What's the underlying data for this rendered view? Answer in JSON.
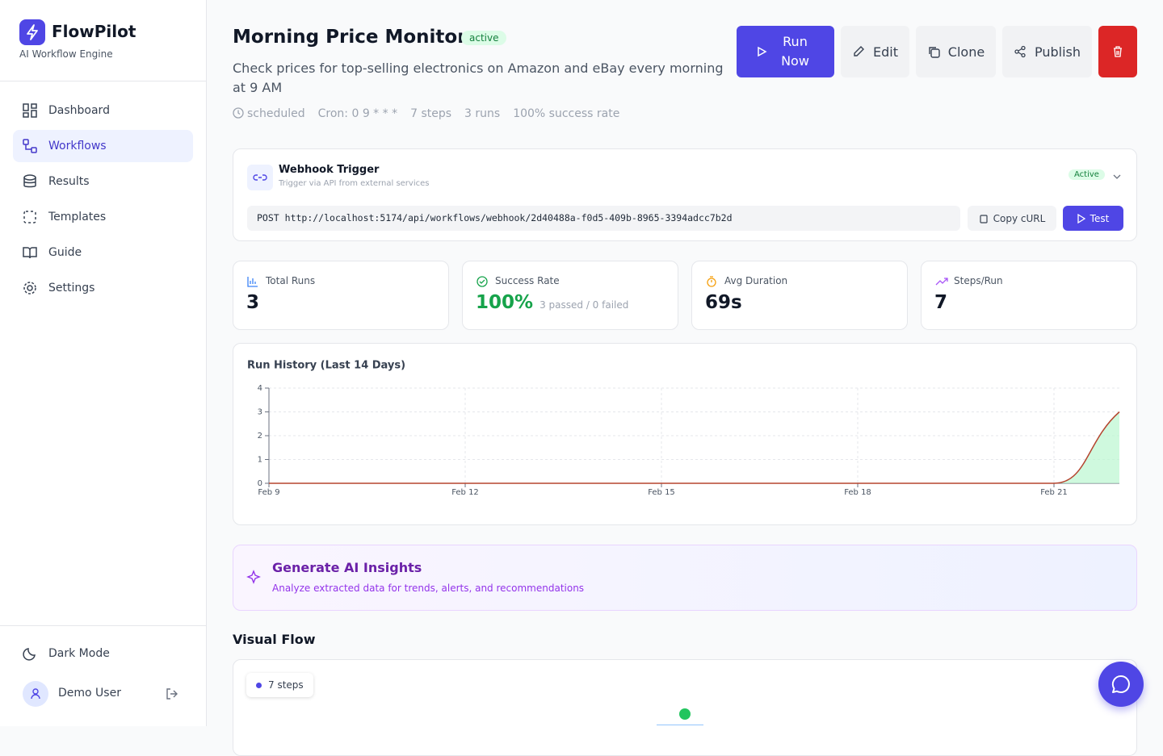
{
  "sidebar": {
    "brand": "FlowPilot",
    "tagline": "AI Workflow Engine",
    "nav": [
      "Dashboard",
      "Workflows",
      "Results",
      "Templates",
      "Guide",
      "Settings"
    ],
    "dark_mode": "Dark Mode",
    "user": "Demo User"
  },
  "header": {
    "title": "Morning Price Monitor",
    "status": "active",
    "description": "Check prices for top-selling electronics on Amazon and eBay every morning at 9 AM",
    "meta": [
      "scheduled",
      "Cron: 0 9 * * *",
      "7 steps",
      "3 runs",
      "100% success rate"
    ],
    "buttons": [
      "Run Now",
      "Edit",
      "Clone",
      "Publish"
    ]
  },
  "webhook": {
    "title": "Webhook Trigger",
    "subtitle": "Trigger via API from external services",
    "status": "Active",
    "method": "POST",
    "url": "http://localhost:5174/api/workflows/webhook/2d40488a-f0d5-409b-8965-3394adcc7b2d",
    "copy": "Copy cURL",
    "test": "Test"
  },
  "stats": [
    {
      "label": "Total Runs",
      "value": "3"
    },
    {
      "label": "Success Rate",
      "value": "100%",
      "note": "3 passed / 0 failed"
    },
    {
      "label": "Avg Duration",
      "value": "69s"
    },
    {
      "label": "Steps/Run",
      "value": "7"
    }
  ],
  "chart_data": {
    "type": "area",
    "title": "Run History (Last 14 Days)",
    "categories": [
      "Feb 9",
      null,
      null,
      "Feb 12",
      null,
      null,
      "Feb 15",
      null,
      null,
      "Feb 18",
      null,
      null,
      "Feb 21",
      null
    ],
    "values": [
      0,
      0,
      0,
      0,
      0,
      0,
      0,
      0,
      0,
      0,
      0,
      0,
      0,
      3
    ],
    "color": "#b5452f",
    "fill": "#bbf7d0",
    "ylim": [
      0,
      4
    ],
    "yticks": [
      0,
      1,
      2,
      3,
      4
    ],
    "grid": true
  },
  "insights": {
    "title": "Generate AI Insights",
    "subtitle": "Analyze extracted data for trends, alerts, and recommendations"
  },
  "visual_flow": {
    "title": "Visual Flow",
    "badge": "7 steps"
  }
}
